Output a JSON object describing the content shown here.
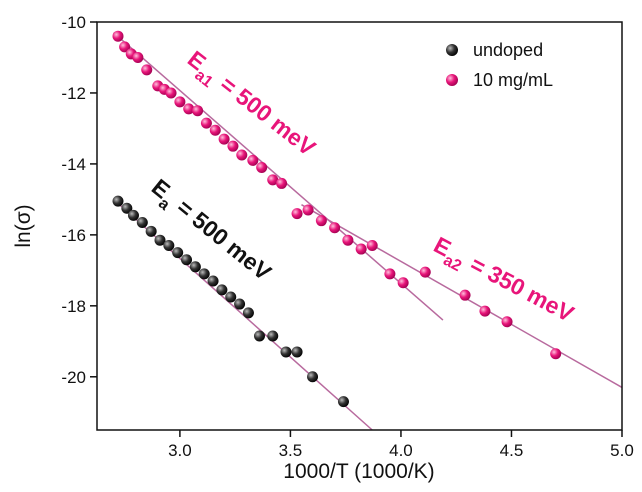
{
  "chart_data": {
    "type": "scatter",
    "xlabel": "1000/T (1000/K)",
    "ylabel": "ln(σ)",
    "xlim": [
      2.625,
      5.0
    ],
    "ylim": [
      -21.5,
      -10
    ],
    "xticks": [
      {
        "value": 3.0,
        "label": "3.0"
      },
      {
        "value": 3.5,
        "label": "3.5"
      },
      {
        "value": 4.0,
        "label": "4.0"
      },
      {
        "value": 4.5,
        "label": "4.5"
      },
      {
        "value": 5.0,
        "label": "5.0"
      }
    ],
    "yticks": [
      -10,
      -12,
      -14,
      -16,
      -18,
      -20
    ],
    "legend": "upper right",
    "series": [
      {
        "name": "undoped",
        "color": "#1a1a1a",
        "x": [
          2.72,
          2.76,
          2.79,
          2.83,
          2.87,
          2.91,
          2.95,
          2.99,
          3.03,
          3.07,
          3.11,
          3.15,
          3.19,
          3.23,
          3.27,
          3.31,
          3.36,
          3.42,
          3.48,
          3.53,
          3.6,
          3.74
        ],
        "values": [
          -15.05,
          -15.25,
          -15.45,
          -15.65,
          -15.9,
          -16.15,
          -16.3,
          -16.5,
          -16.7,
          -16.9,
          -17.1,
          -17.3,
          -17.55,
          -17.75,
          -17.95,
          -18.2,
          -18.85,
          -18.85,
          -19.3,
          -19.3,
          -20.0,
          -20.7
        ]
      },
      {
        "name": "10 mg/mL",
        "color": "#e8157a",
        "x": [
          2.72,
          2.75,
          2.78,
          2.81,
          2.85,
          2.9,
          2.93,
          2.96,
          3.0,
          3.04,
          3.08,
          3.12,
          3.16,
          3.2,
          3.24,
          3.28,
          3.33,
          3.37,
          3.42,
          3.46,
          3.53,
          3.58,
          3.64,
          3.7,
          3.76,
          3.82,
          3.87,
          3.95,
          4.01,
          4.11,
          4.29,
          4.38,
          4.48,
          4.7
        ],
        "values": [
          -10.4,
          -10.7,
          -10.9,
          -11.0,
          -11.35,
          -11.8,
          -11.9,
          -12.0,
          -12.25,
          -12.45,
          -12.5,
          -12.85,
          -13.05,
          -13.3,
          -13.5,
          -13.75,
          -13.9,
          -14.1,
          -14.45,
          -14.55,
          -15.4,
          -15.3,
          -15.6,
          -15.8,
          -16.15,
          -16.4,
          -16.3,
          -17.1,
          -17.35,
          -17.05,
          -17.7,
          -18.15,
          -18.45,
          -19.35
        ]
      }
    ],
    "fits": [
      {
        "color": "#b86a9e",
        "x": [
          2.7,
          3.87
        ],
        "values": [
          -15.0,
          -21.5
        ]
      },
      {
        "color": "#b86a9e",
        "x": [
          2.7,
          4.19
        ],
        "values": [
          -10.3,
          -18.4
        ]
      },
      {
        "color": "#b86a9e",
        "x": [
          3.55,
          5.0
        ],
        "values": [
          -15.15,
          -20.3
        ]
      }
    ],
    "annotations": [
      {
        "text": "E",
        "sub": "a1",
        "rest": "= 500 meV",
        "color": "#e8157a"
      },
      {
        "text": "E",
        "sub": "a",
        "rest": "= 500 meV",
        "color": "#111111"
      },
      {
        "text": "E",
        "sub": "a2",
        "rest": "= 350 meV",
        "color": "#e8157a"
      }
    ]
  }
}
